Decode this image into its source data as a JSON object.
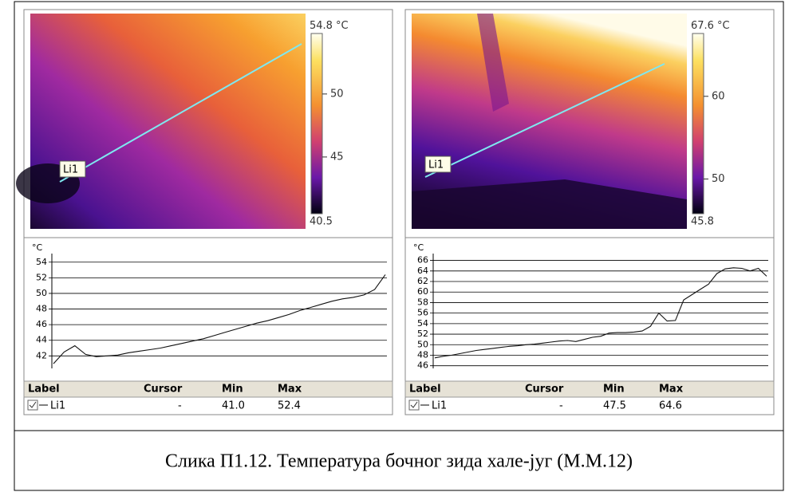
{
  "panels": [
    {
      "image": {
        "line_label": "Li1",
        "scale": {
          "max": 54.8,
          "min": 40.5,
          "unit": "°C",
          "ticks": [
            50,
            45
          ]
        }
      },
      "chart": {
        "type": "line",
        "y_unit": "°C",
        "ylim": [
          40.4,
          55.1
        ],
        "yticks": [
          42,
          44,
          46,
          48,
          50,
          52,
          54
        ],
        "values": [
          41.0,
          42.5,
          43.3,
          42.2,
          41.9,
          42.0,
          42.1,
          42.4,
          42.6,
          42.8,
          43.0,
          43.3,
          43.6,
          43.9,
          44.2,
          44.6,
          45.0,
          45.4,
          45.8,
          46.2,
          46.5,
          46.9,
          47.3,
          47.8,
          48.2,
          48.6,
          49.0,
          49.3,
          49.5,
          49.8,
          50.5,
          52.4
        ]
      },
      "table": {
        "headers": [
          "Label",
          "Cursor",
          "Min",
          "Max"
        ],
        "row": [
          "Li1",
          "-",
          "41.0",
          "52.4"
        ]
      }
    },
    {
      "image": {
        "line_label": "Li1",
        "scale": {
          "max": 67.6,
          "min": 45.8,
          "unit": "°C",
          "ticks": [
            60,
            50
          ]
        }
      },
      "chart": {
        "type": "line",
        "y_unit": "°C",
        "ylim": [
          45.5,
          67.3
        ],
        "yticks": [
          46,
          48,
          50,
          52,
          54,
          56,
          58,
          60,
          62,
          64,
          66
        ],
        "values": [
          47.5,
          47.8,
          48.0,
          48.3,
          48.6,
          48.9,
          49.1,
          49.3,
          49.5,
          49.7,
          49.8,
          50.0,
          50.1,
          50.3,
          50.5,
          50.7,
          50.8,
          50.6,
          51.0,
          51.4,
          51.6,
          52.2,
          52.3,
          52.3,
          52.4,
          52.6,
          53.5,
          56.0,
          54.5,
          54.6,
          58.5,
          59.5,
          60.5,
          61.5,
          63.5,
          64.4,
          64.6,
          64.5,
          64.0,
          64.5,
          63.0
        ]
      },
      "table": {
        "headers": [
          "Label",
          "Cursor",
          "Min",
          "Max"
        ],
        "row": [
          "Li1",
          "-",
          "47.5",
          "64.6"
        ]
      }
    }
  ],
  "caption": "Слика П1.12. Температура бочног зида хале-југ (М.М.12)"
}
